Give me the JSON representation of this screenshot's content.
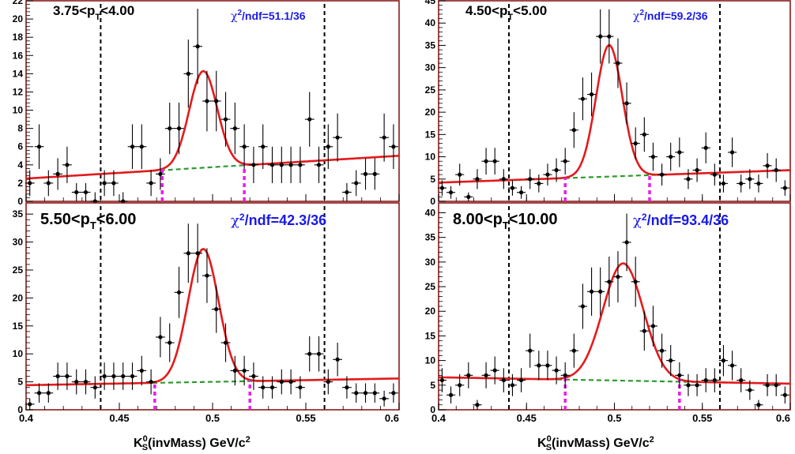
{
  "figure": {
    "xaxis_title_main": "K",
    "xaxis_title_sup": "0",
    "xaxis_title_sub": "S",
    "xaxis_title_rest": "(invMass) GeV/c",
    "xaxis_title_pow": "2"
  },
  "colors": {
    "frame": "#8b1a1a",
    "fit": "#e41a1c",
    "background": "#2e9a2e",
    "chi2": "#1a1ae6",
    "window": "#e81ee8",
    "signal_line": "#000000",
    "points": "#000000"
  },
  "chart_data": [
    {
      "type": "scatter",
      "pt_label_lo": "3.75<p",
      "pt_label_sub": "T",
      "pt_label_hi": "<4.00",
      "chi2_sym": "χ",
      "chi2_sup": "2",
      "chi2_rest": "/ndf=51.1/36",
      "xlim": [
        0.4,
        0.6
      ],
      "ylim": [
        0,
        22
      ],
      "yticks": [
        0,
        2,
        4,
        6,
        8,
        10,
        12,
        14,
        16,
        18,
        20,
        22
      ],
      "ytick_labels": [
        "0",
        "2",
        "4",
        "6",
        "8",
        "10",
        "12",
        "14",
        "16",
        "18",
        "20",
        "22"
      ],
      "xticks": [
        0.4,
        0.45,
        0.5,
        0.55,
        0.6
      ],
      "xtick_labels": [],
      "signal_window": [
        0.44,
        0.56
      ],
      "sideband_marks": [
        0.473,
        0.517
      ],
      "fit": {
        "mean": 0.495,
        "sigma": 0.0075,
        "amp": 10.6,
        "bkg_a": 2.5,
        "bkg_b": 5.0
      },
      "points": {
        "x": [
          0.402,
          0.407,
          0.412,
          0.417,
          0.422,
          0.427,
          0.432,
          0.437,
          0.442,
          0.447,
          0.452,
          0.457,
          0.462,
          0.467,
          0.472,
          0.477,
          0.482,
          0.487,
          0.492,
          0.497,
          0.502,
          0.507,
          0.512,
          0.517,
          0.522,
          0.527,
          0.532,
          0.537,
          0.542,
          0.547,
          0.552,
          0.557,
          0.562,
          0.567,
          0.572,
          0.577,
          0.582,
          0.587,
          0.592,
          0.597
        ],
        "y": [
          2,
          6,
          2,
          3,
          4,
          1,
          1,
          0,
          2,
          2,
          0,
          6,
          6,
          2,
          3,
          8,
          8,
          14,
          17,
          11,
          11,
          9,
          8,
          6,
          4,
          6,
          4,
          4,
          4,
          4,
          9,
          4,
          6,
          7,
          1,
          2,
          3,
          3,
          7,
          6
        ]
      }
    },
    {
      "type": "scatter",
      "pt_label_lo": "4.50<p",
      "pt_label_sub": "T",
      "pt_label_hi": "<5.00",
      "chi2_sym": "χ",
      "chi2_sup": "2",
      "chi2_rest": "/ndf=59.2/36",
      "xlim": [
        0.4,
        0.6
      ],
      "ylim": [
        0,
        45
      ],
      "yticks": [
        0,
        5,
        10,
        15,
        20,
        25,
        30,
        35,
        40,
        45
      ],
      "ytick_labels": [
        "0",
        "5",
        "10",
        "15",
        "20",
        "25",
        "30",
        "35",
        "40",
        "45"
      ],
      "xticks": [
        0.4,
        0.45,
        0.5,
        0.55,
        0.6
      ],
      "xtick_labels": [],
      "signal_window": [
        0.44,
        0.56
      ],
      "sideband_marks": [
        0.472,
        0.52
      ],
      "fit": {
        "mean": 0.497,
        "sigma": 0.0075,
        "amp": 29.5,
        "bkg_a": 4.2,
        "bkg_b": 7.0
      },
      "points": {
        "x": [
          0.402,
          0.407,
          0.412,
          0.417,
          0.422,
          0.427,
          0.432,
          0.437,
          0.442,
          0.447,
          0.452,
          0.457,
          0.462,
          0.467,
          0.472,
          0.477,
          0.482,
          0.487,
          0.492,
          0.497,
          0.502,
          0.507,
          0.512,
          0.517,
          0.522,
          0.527,
          0.532,
          0.537,
          0.542,
          0.547,
          0.552,
          0.557,
          0.562,
          0.567,
          0.572,
          0.577,
          0.582,
          0.587,
          0.592,
          0.597
        ],
        "y": [
          3,
          2,
          6,
          1,
          5,
          9,
          9,
          5,
          3,
          2,
          5,
          4,
          6,
          7,
          9,
          16,
          23,
          24,
          37,
          37,
          31,
          22,
          13,
          15,
          10,
          6,
          10,
          11,
          5,
          7,
          12,
          6,
          4,
          11,
          4,
          5,
          4,
          8,
          7,
          3
        ]
      }
    },
    {
      "type": "scatter",
      "pt_label_lo": "5.50<p",
      "pt_label_sub": "T",
      "pt_label_hi": "<6.00",
      "chi2_sym": "χ",
      "chi2_sup": "2",
      "chi2_rest": "/ndf=42.3/36",
      "xlim": [
        0.4,
        0.6
      ],
      "ylim": [
        0,
        37
      ],
      "yticks": [
        0,
        5,
        10,
        15,
        20,
        25,
        30,
        35
      ],
      "ytick_labels": [
        "0",
        "5",
        "10",
        "15",
        "20",
        "25",
        "30",
        "35"
      ],
      "xticks": [
        0.4,
        0.45,
        0.5,
        0.55,
        0.6
      ],
      "xtick_labels": [
        "0.4",
        "0.45",
        "0.5",
        "0.55",
        "0.6"
      ],
      "signal_window": [
        0.44,
        0.56
      ],
      "sideband_marks": [
        0.469,
        0.52
      ],
      "fit": {
        "mean": 0.495,
        "sigma": 0.0082,
        "amp": 23.8,
        "bkg_a": 4.4,
        "bkg_b": 5.6
      },
      "points": {
        "x": [
          0.402,
          0.407,
          0.412,
          0.417,
          0.422,
          0.427,
          0.432,
          0.437,
          0.442,
          0.447,
          0.452,
          0.457,
          0.462,
          0.467,
          0.472,
          0.477,
          0.482,
          0.487,
          0.492,
          0.497,
          0.502,
          0.507,
          0.512,
          0.517,
          0.522,
          0.527,
          0.532,
          0.537,
          0.542,
          0.547,
          0.552,
          0.557,
          0.562,
          0.567,
          0.572,
          0.577,
          0.582,
          0.587,
          0.592,
          0.597
        ],
        "y": [
          1,
          3,
          3,
          6,
          6,
          5,
          5,
          4,
          6,
          6,
          6,
          6,
          7,
          5,
          13,
          12,
          21,
          28,
          28,
          24,
          18,
          12,
          7,
          7,
          6,
          4,
          4,
          5,
          5,
          4,
          10,
          10,
          5,
          9,
          4,
          3,
          3,
          3,
          2,
          3
        ]
      }
    },
    {
      "type": "scatter",
      "pt_label_lo": "8.00<p",
      "pt_label_sub": "T",
      "pt_label_hi": "<10.00",
      "chi2_sym": "χ",
      "chi2_sup": "2",
      "chi2_rest": "/ndf=93.4/36",
      "xlim": [
        0.4,
        0.6
      ],
      "ylim": [
        0,
        42
      ],
      "yticks": [
        0,
        5,
        10,
        15,
        20,
        25,
        30,
        35,
        40
      ],
      "ytick_labels": [
        "0",
        "5",
        "10",
        "15",
        "20",
        "25",
        "30",
        "35",
        "40"
      ],
      "xticks": [
        0.4,
        0.45,
        0.5,
        0.55,
        0.6
      ],
      "xtick_labels": [
        "0.4",
        "0.45",
        "0.5",
        "0.55",
        "0.6"
      ],
      "signal_window": [
        0.44,
        0.56
      ],
      "sideband_marks": [
        0.472,
        0.537
      ],
      "fit": {
        "mean": 0.505,
        "sigma": 0.0115,
        "amp": 23.8,
        "bkg_a": 6.6,
        "bkg_b": 5.3
      },
      "points": {
        "x": [
          0.402,
          0.407,
          0.412,
          0.417,
          0.422,
          0.427,
          0.432,
          0.437,
          0.442,
          0.447,
          0.452,
          0.457,
          0.462,
          0.467,
          0.472,
          0.477,
          0.482,
          0.487,
          0.492,
          0.497,
          0.502,
          0.507,
          0.512,
          0.517,
          0.522,
          0.527,
          0.532,
          0.537,
          0.542,
          0.547,
          0.552,
          0.557,
          0.562,
          0.567,
          0.572,
          0.577,
          0.582,
          0.587,
          0.592,
          0.597
        ],
        "y": [
          6,
          3,
          5,
          7,
          1,
          7,
          8,
          6,
          5,
          6,
          12,
          9,
          9,
          8,
          7,
          12,
          21,
          24,
          24,
          26,
          27,
          34,
          26,
          16,
          17,
          12,
          10,
          7,
          5,
          5,
          6,
          6,
          10,
          9,
          6,
          4,
          1,
          5,
          5,
          3
        ]
      }
    }
  ]
}
